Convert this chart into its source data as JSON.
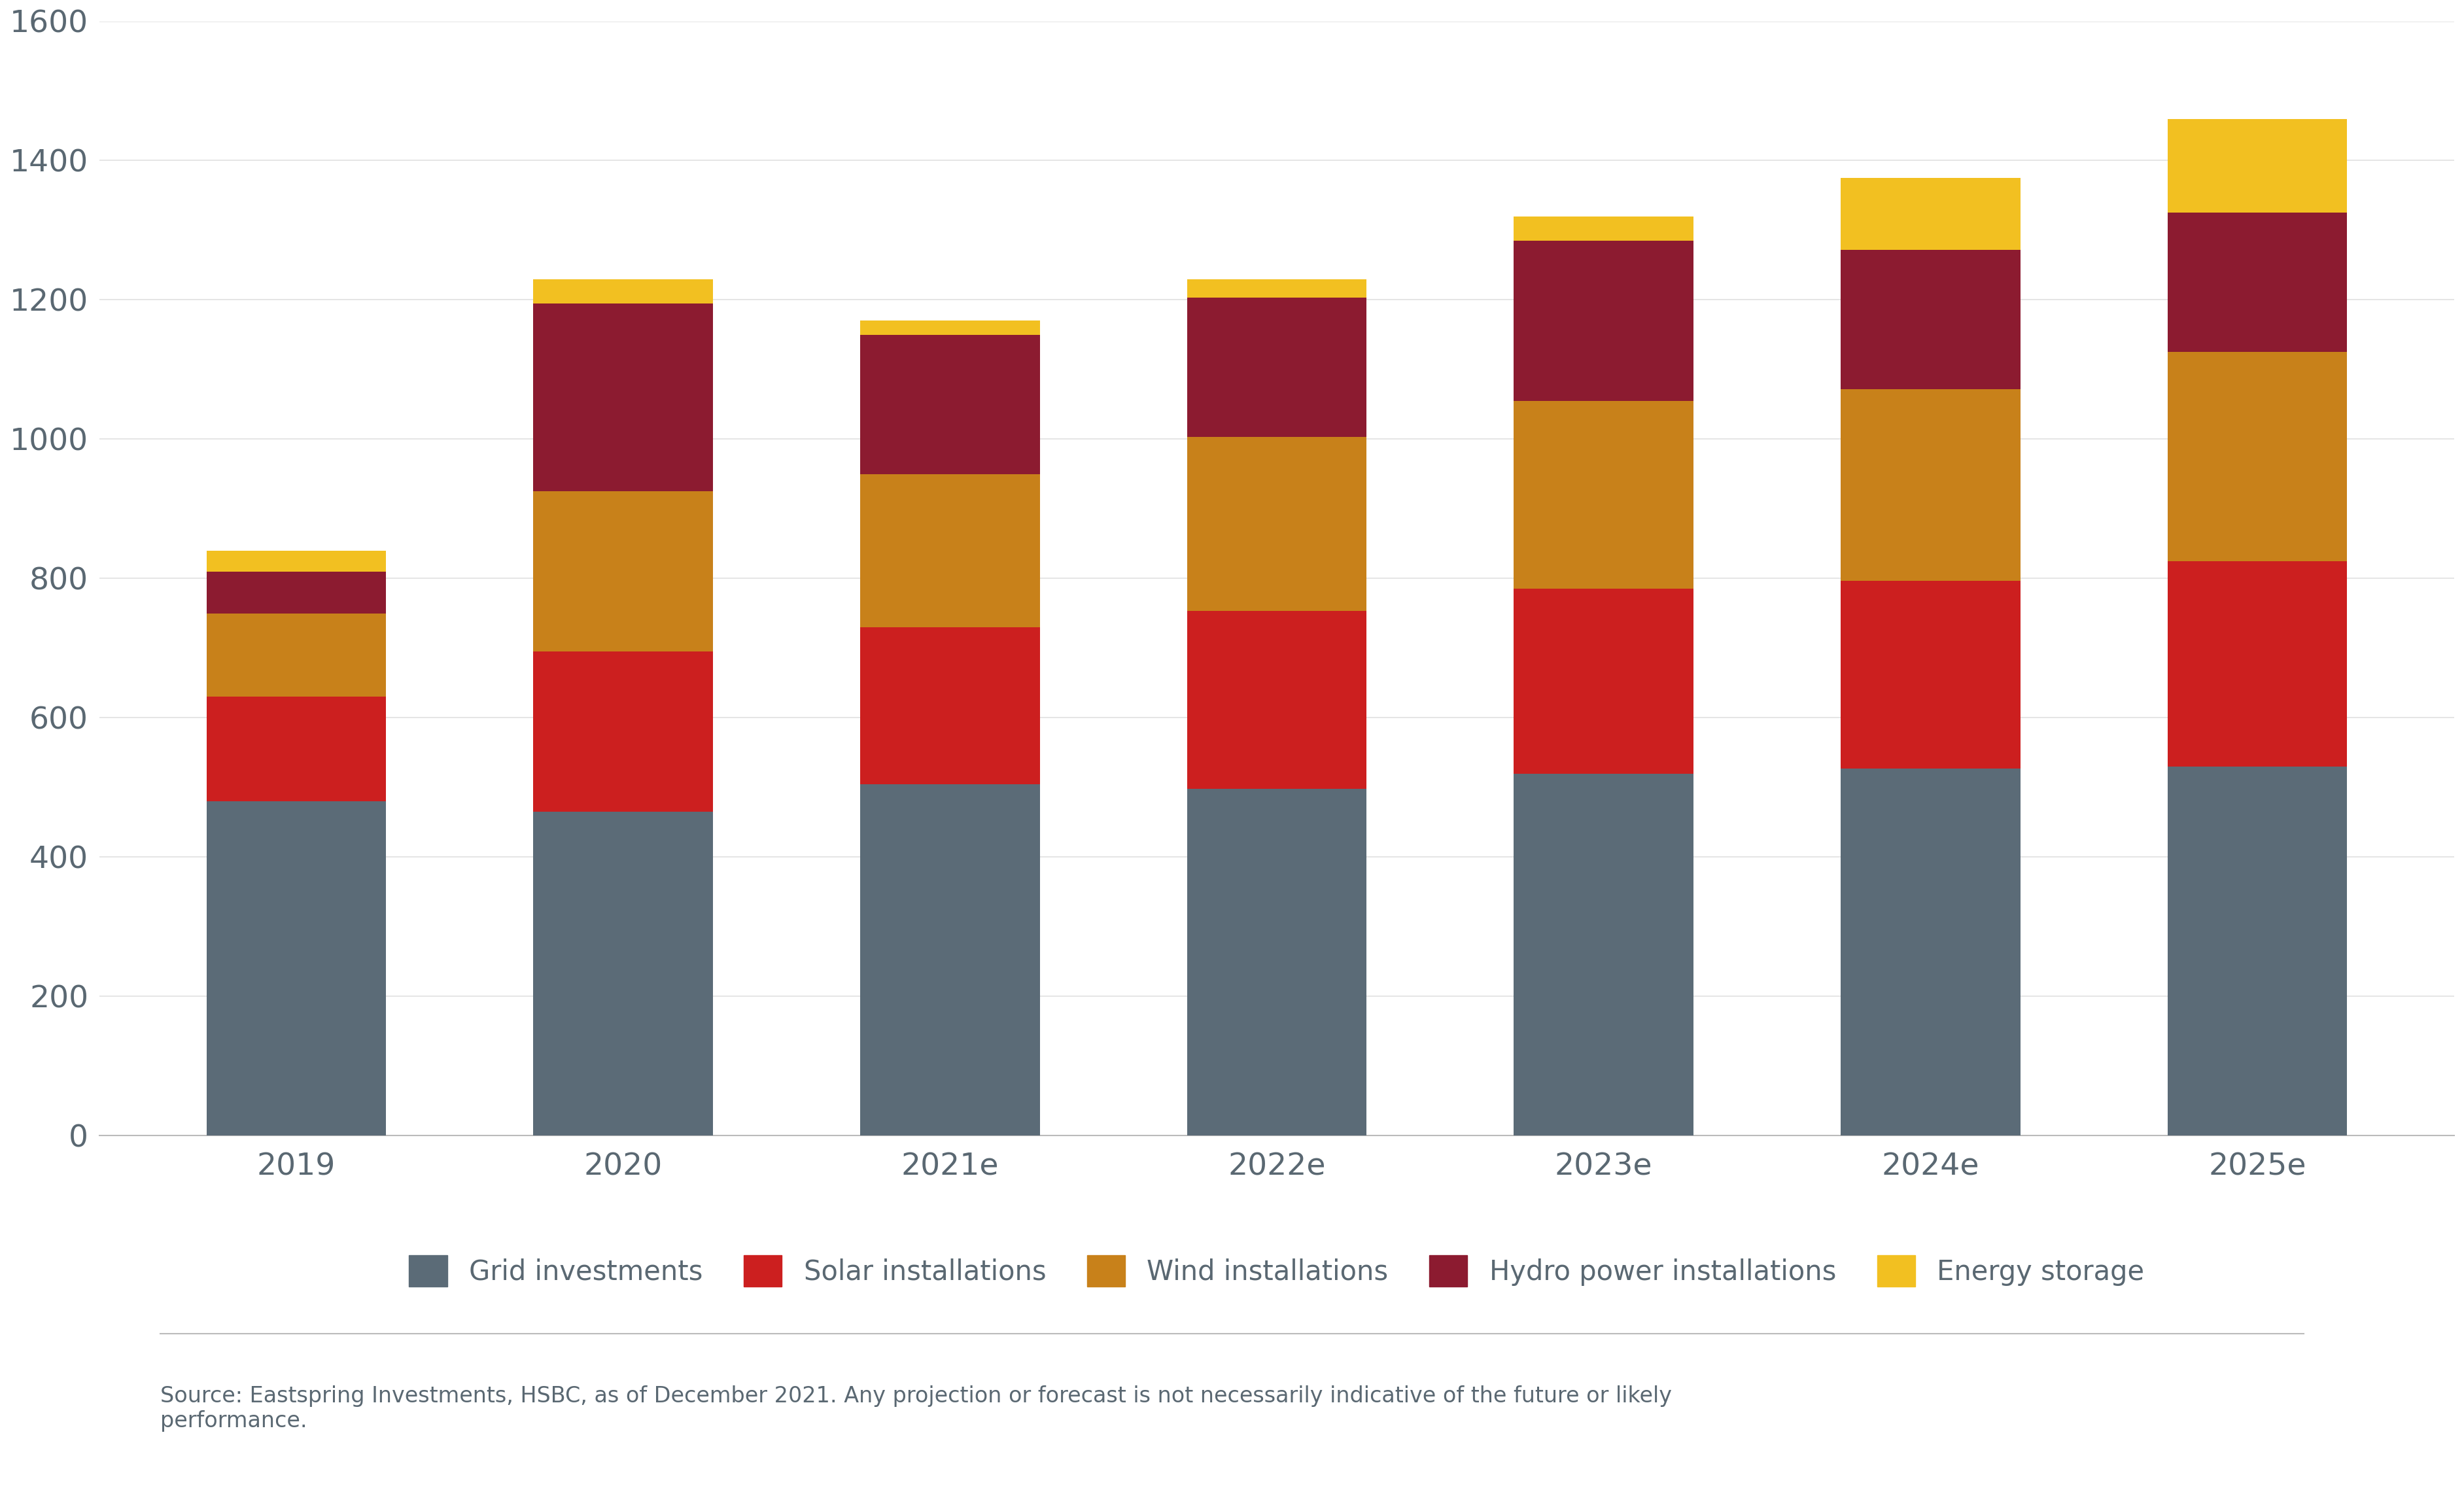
{
  "categories": [
    "2019",
    "2020",
    "2021e",
    "2022e",
    "2023e",
    "2024e",
    "2025e"
  ],
  "grid_investments": [
    480,
    465,
    505,
    498,
    520,
    527,
    530
  ],
  "solar_installations": [
    150,
    230,
    225,
    255,
    265,
    270,
    295
  ],
  "wind_installations": [
    120,
    230,
    220,
    250,
    270,
    275,
    300
  ],
  "hydro_power_installations": [
    60,
    270,
    200,
    200,
    230,
    200,
    200
  ],
  "energy_storage": [
    30,
    35,
    20,
    27,
    35,
    103,
    135
  ],
  "colors": {
    "grid_investments": "#5b6b77",
    "solar_installations": "#cc1f1f",
    "wind_installations": "#c8811a",
    "hydro_power_installations": "#8c1b30",
    "energy_storage": "#f2c021"
  },
  "legend_labels": [
    "Grid investments",
    "Solar installations",
    "Wind installations",
    "Hydro power installations",
    "Energy storage"
  ],
  "ylim": [
    0,
    1600
  ],
  "yticks": [
    0,
    200,
    400,
    600,
    800,
    1000,
    1200,
    1400,
    1600
  ],
  "source_text": "Source: Eastspring Investments, HSBC, as of December 2021. Any projection or forecast is not necessarily indicative of the future or likely\nperformance.",
  "background_color": "#ffffff",
  "bar_width": 0.55
}
